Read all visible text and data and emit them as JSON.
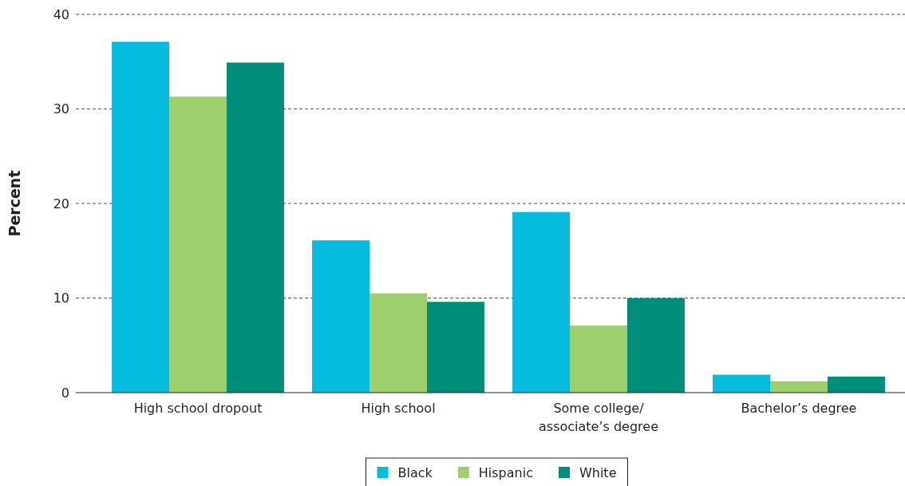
{
  "chart_data": {
    "type": "bar",
    "ylabel": "Percent",
    "categories": [
      "High school dropout",
      "High school",
      "Some college/associate’s degree",
      "Bachelor’s degree"
    ],
    "series": [
      {
        "name": "Black",
        "color": "#06bcdc",
        "values": [
          37.1,
          16.1,
          19.1,
          1.9
        ]
      },
      {
        "name": "Hispanic",
        "color": "#9dcf6f",
        "values": [
          31.3,
          10.5,
          7.1,
          1.2
        ]
      },
      {
        "name": "White",
        "color": "#008e7a",
        "values": [
          34.9,
          9.6,
          10.0,
          1.7
        ]
      }
    ],
    "ylim": [
      0,
      40
    ],
    "yticks": [
      0,
      10,
      20,
      30,
      40
    ],
    "grid": "y",
    "legend": "bottom"
  }
}
